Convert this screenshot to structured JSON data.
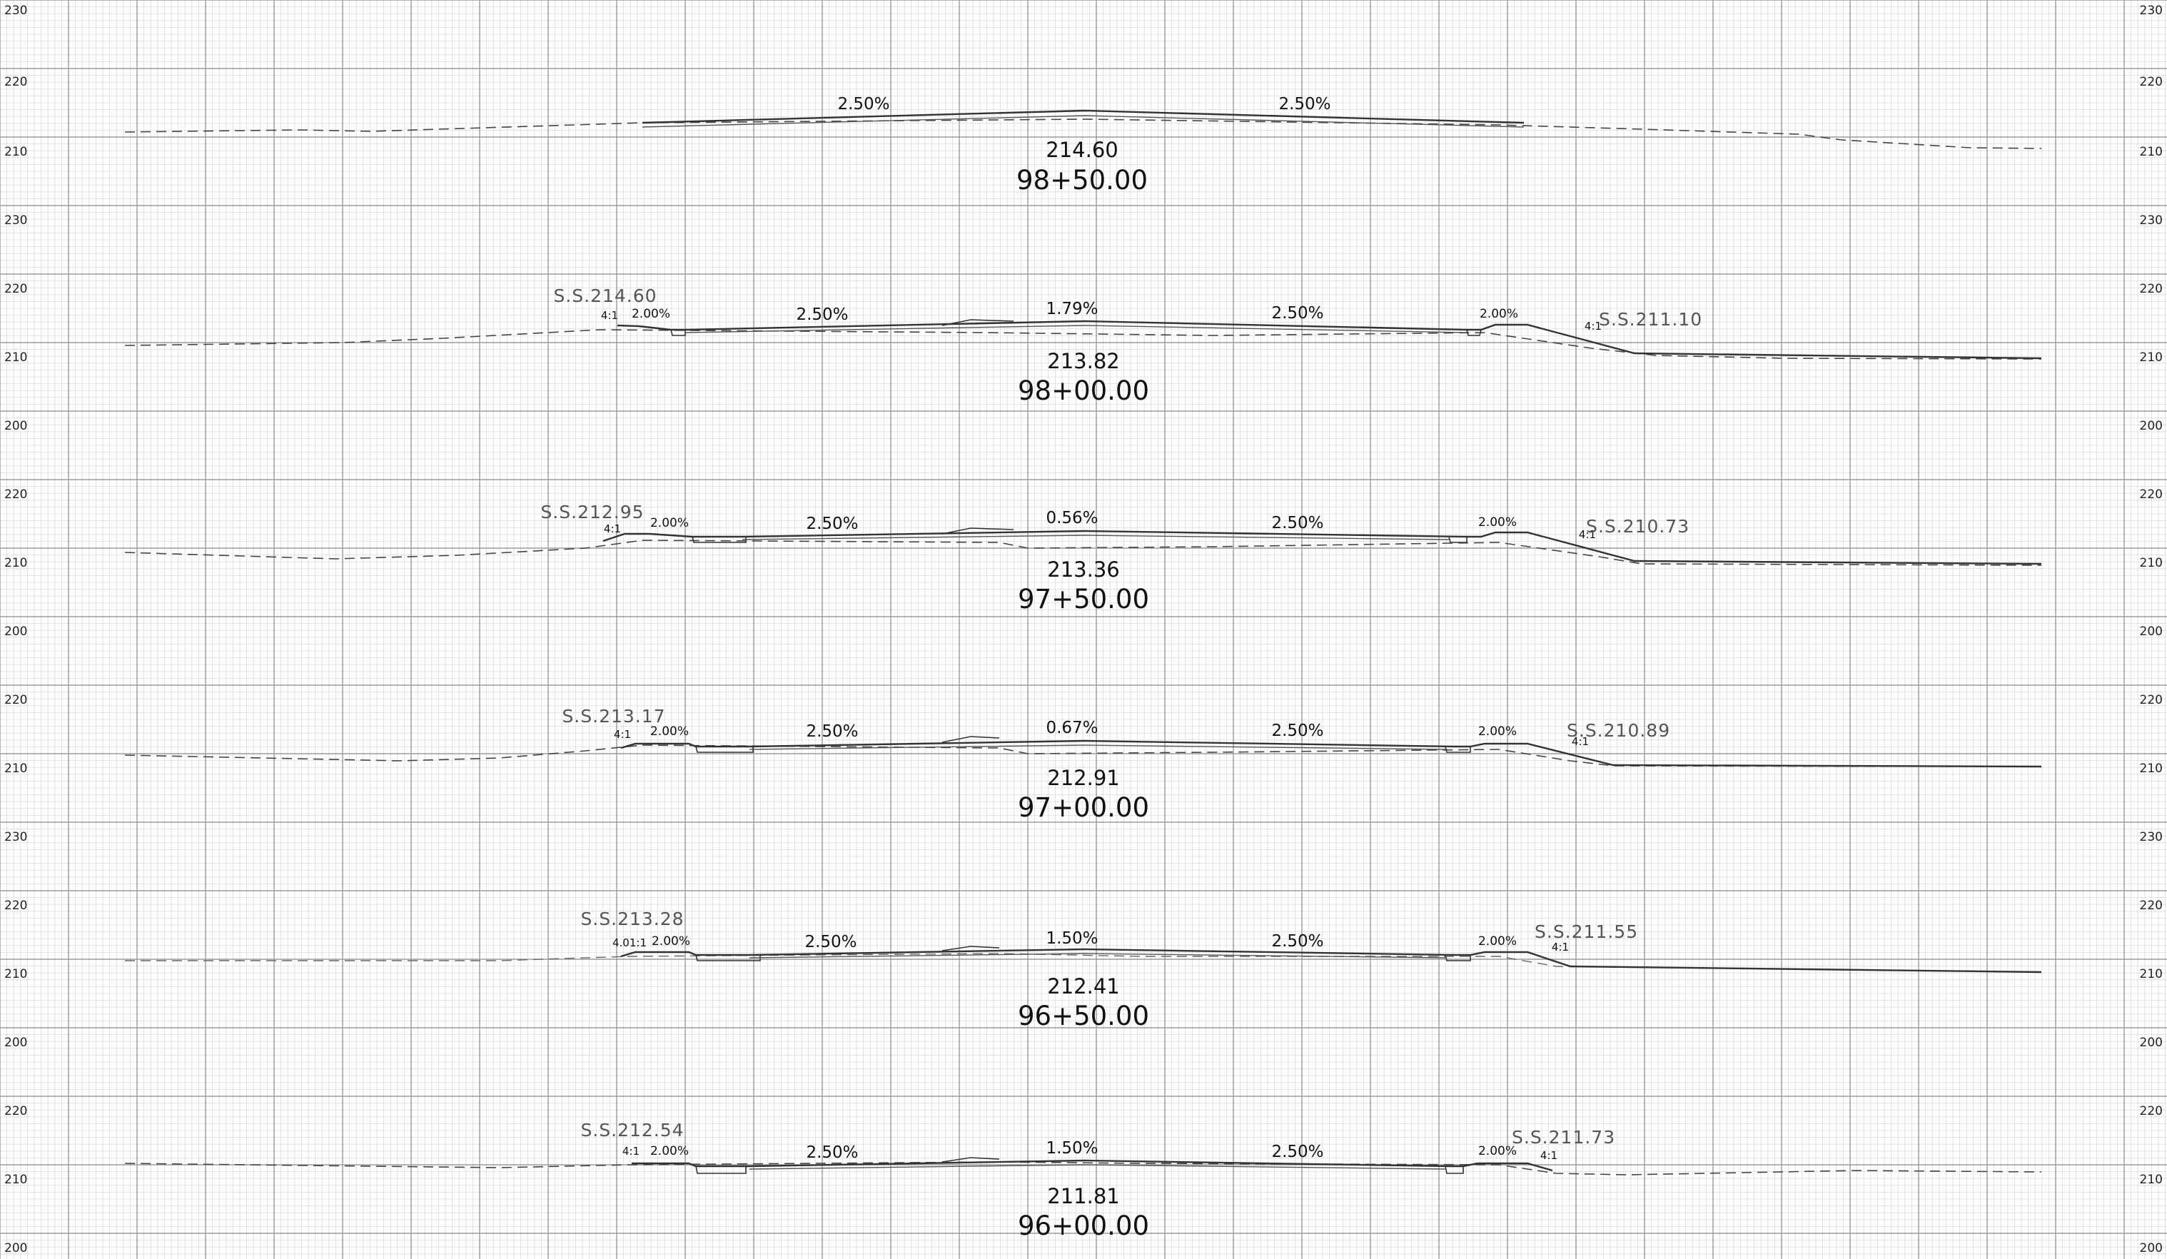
{
  "elevation_labels": [
    "230",
    "220",
    "210",
    "230",
    "220",
    "210",
    "200",
    "220",
    "210",
    "200",
    "220",
    "210",
    "230",
    "220",
    "210",
    "200",
    "220",
    "210",
    "200"
  ],
  "sections": [
    {
      "station": "98+50.00",
      "centerline_elevation": "214.60",
      "slopes": {
        "left_lane": "2.50%",
        "right_lane": "2.50%"
      }
    },
    {
      "station": "98+00.00",
      "centerline_elevation": "213.82",
      "slopes": {
        "left_shoulder": "2.00%",
        "left_lane": "2.50%",
        "crown": "1.79%",
        "right_lane": "2.50%",
        "right_shoulder": "2.00%"
      },
      "left_slope_ratio": "4:1",
      "right_slope_ratio": "4:1",
      "left_slope_stake": "S.S.214.60",
      "right_slope_stake": "S.S.211.10"
    },
    {
      "station": "97+50.00",
      "centerline_elevation": "213.36",
      "slopes": {
        "left_shoulder": "2.00%",
        "left_lane": "2.50%",
        "crown": "0.56%",
        "right_lane": "2.50%",
        "right_shoulder": "2.00%"
      },
      "left_slope_ratio": "4:1",
      "right_slope_ratio": "4:1",
      "left_slope_stake": "S.S.212.95",
      "right_slope_stake": "S.S.210.73"
    },
    {
      "station": "97+00.00",
      "centerline_elevation": "212.91",
      "slopes": {
        "left_shoulder": "2.00%",
        "left_lane": "2.50%",
        "crown": "0.67%",
        "right_lane": "2.50%",
        "right_shoulder": "2.00%"
      },
      "left_slope_ratio": "4:1",
      "right_slope_ratio": "4:1",
      "left_slope_stake": "S.S.213.17",
      "right_slope_stake": "S.S.210.89"
    },
    {
      "station": "96+50.00",
      "centerline_elevation": "212.41",
      "slopes": {
        "left_shoulder": "2.00%",
        "left_lane": "2.50%",
        "crown": "1.50%",
        "right_lane": "2.50%",
        "right_shoulder": "2.00%"
      },
      "left_slope_ratio": "4.01:1",
      "right_slope_ratio": "4:1",
      "left_slope_stake": "S.S.213.28",
      "right_slope_stake": "S.S.211.55"
    },
    {
      "station": "96+00.00",
      "centerline_elevation": "211.81",
      "slopes": {
        "left_shoulder": "2.00%",
        "left_lane": "2.50%",
        "crown": "1.50%",
        "right_lane": "2.50%",
        "right_shoulder": "2.00%"
      },
      "left_slope_ratio": "4:1",
      "right_slope_ratio": "4:1",
      "left_slope_stake": "S.S.212.54",
      "right_slope_stake": "S.S.211.73"
    }
  ]
}
